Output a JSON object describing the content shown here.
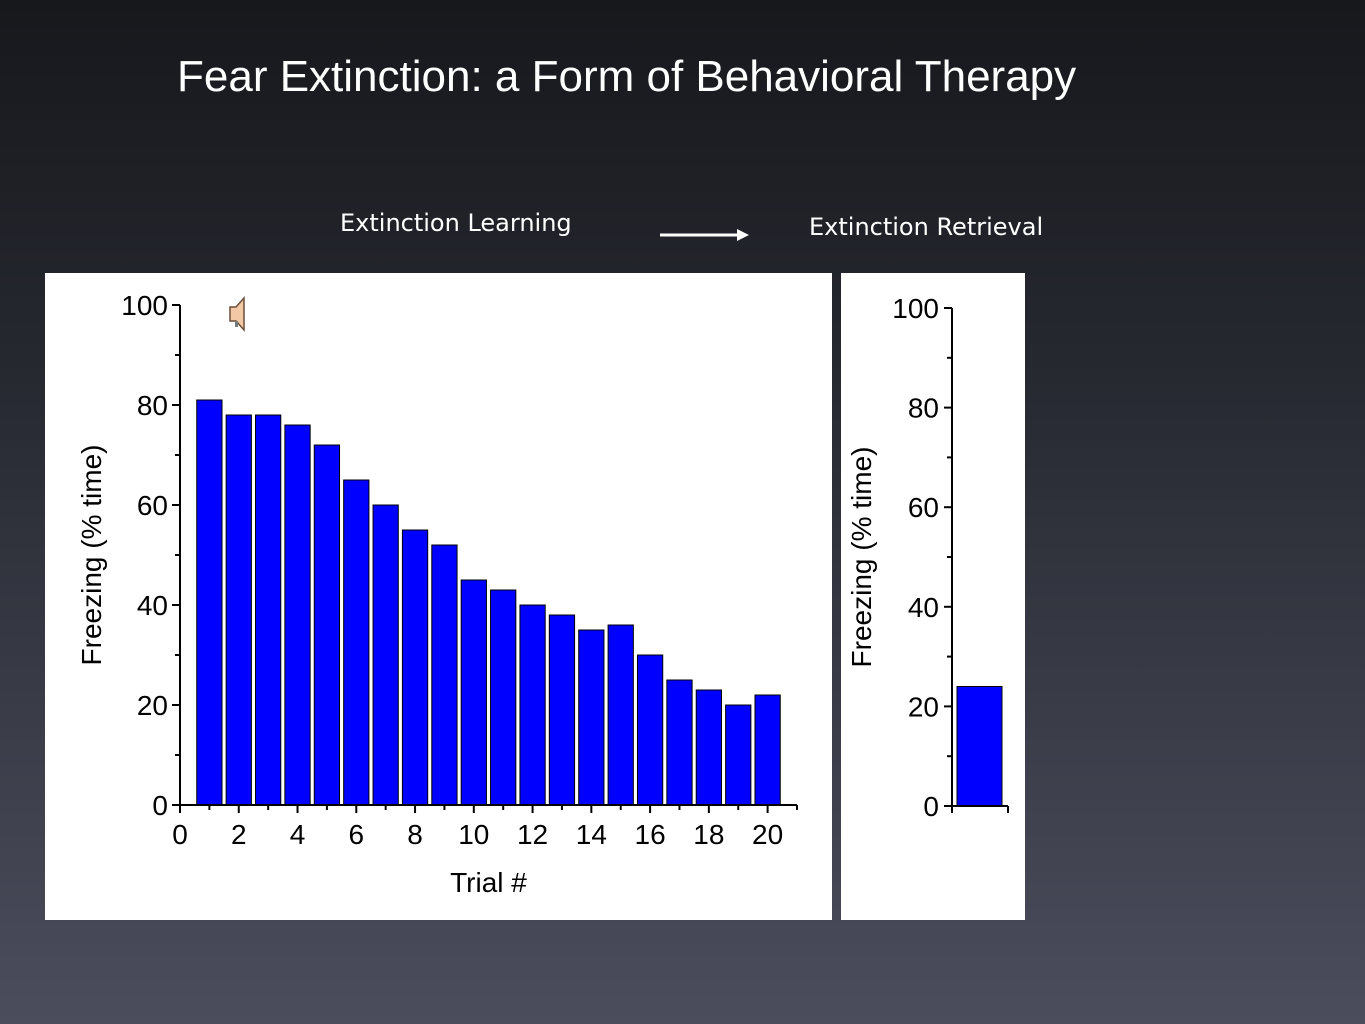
{
  "slide": {
    "title": "Fear Extinction: a Form of Behavioral Therapy",
    "stage_from": "Extinction Learning",
    "stage_to": "Extinction Retrieval"
  },
  "colors": {
    "bar_fill": "#0000ff",
    "panel_bg": "#ffffff",
    "text": "#ffffff"
  },
  "icons": {
    "speaker": "speaker-icon",
    "arrow": "arrow-right-icon"
  },
  "chart_data": [
    {
      "type": "bar",
      "x": [
        1,
        2,
        3,
        4,
        5,
        6,
        7,
        8,
        9,
        10,
        11,
        12,
        13,
        14,
        15,
        16,
        17,
        18,
        19,
        20
      ],
      "values": [
        81,
        78,
        78,
        76,
        72,
        65,
        60,
        55,
        52,
        45,
        43,
        40,
        38,
        35,
        36,
        30,
        25,
        23,
        20,
        22
      ],
      "xlabel": "Trial #",
      "ylabel": "Freezing (% time)",
      "xlim": [
        0,
        21
      ],
      "ylim": [
        0,
        100
      ],
      "xticks": [
        "0",
        "2",
        "4",
        "6",
        "8",
        "10",
        "12",
        "14",
        "16",
        "18",
        "20"
      ],
      "yticks": [
        "0",
        "20",
        "40",
        "60",
        "80",
        "100"
      ],
      "grid": false
    },
    {
      "type": "bar",
      "values": [
        24
      ],
      "ylabel": "Freezing (% time)",
      "ylim": [
        0,
        100
      ],
      "yticks": [
        "0",
        "20",
        "40",
        "60",
        "80",
        "100"
      ],
      "grid": false
    }
  ]
}
